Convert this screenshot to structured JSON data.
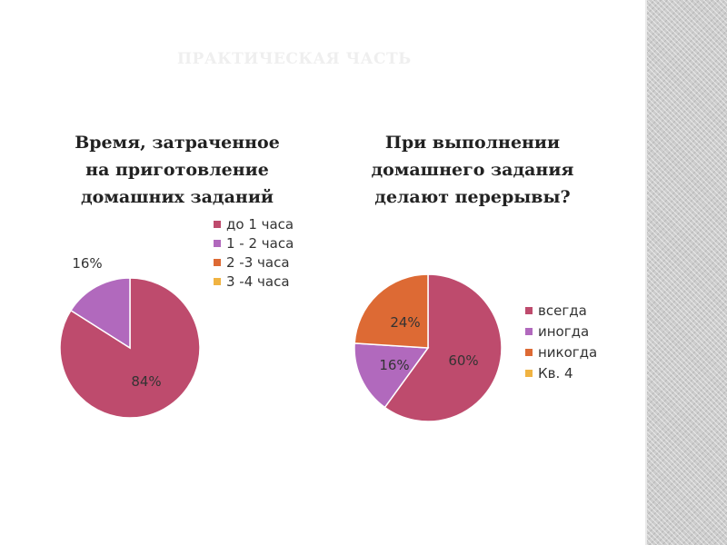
{
  "slide": {
    "title": "ПРАКТИЧЕСКАЯ ЧАСТЬ"
  },
  "colors": {
    "crimson": "#be4b6d",
    "purple": "#b169bd",
    "orange": "#dd6a34",
    "yellow": "#f0b342",
    "label": "#333333",
    "background": "#ffffff",
    "side_strip": "#cdcdcd"
  },
  "chart_data": [
    {
      "type": "pie",
      "title": "Время, затраченное на приготовление домашних заданий",
      "title_lines": [
        "Время, затраченное",
        "на приготовление",
        "домашних заданий"
      ],
      "legend_position": "top-right",
      "slices": [
        {
          "label": "до 1 часа",
          "value": 84,
          "display": "84%",
          "color": "#be4b6d"
        },
        {
          "label": "1 - 2 часа",
          "value": 16,
          "display": "16%",
          "color": "#b169bd"
        },
        {
          "label": "2 -3 часа",
          "value": 0,
          "display": "",
          "color": "#dd6a34"
        },
        {
          "label": "3 -4 часа",
          "value": 0,
          "display": "",
          "color": "#f0b342"
        }
      ]
    },
    {
      "type": "pie",
      "title": "При выполнении домашнего задания делают перерывы?",
      "title_lines": [
        "При выполнении",
        "домашнего задания",
        "делают перерывы?"
      ],
      "legend_position": "right",
      "slices": [
        {
          "label": "всегда",
          "value": 60,
          "display": "60%",
          "color": "#be4b6d"
        },
        {
          "label": "иногда",
          "value": 16,
          "display": "16%",
          "color": "#b169bd"
        },
        {
          "label": "никогда",
          "value": 24,
          "display": "24%",
          "color": "#dd6a34"
        },
        {
          "label": "Кв. 4",
          "value": 0,
          "display": "",
          "color": "#f0b342"
        }
      ]
    }
  ]
}
